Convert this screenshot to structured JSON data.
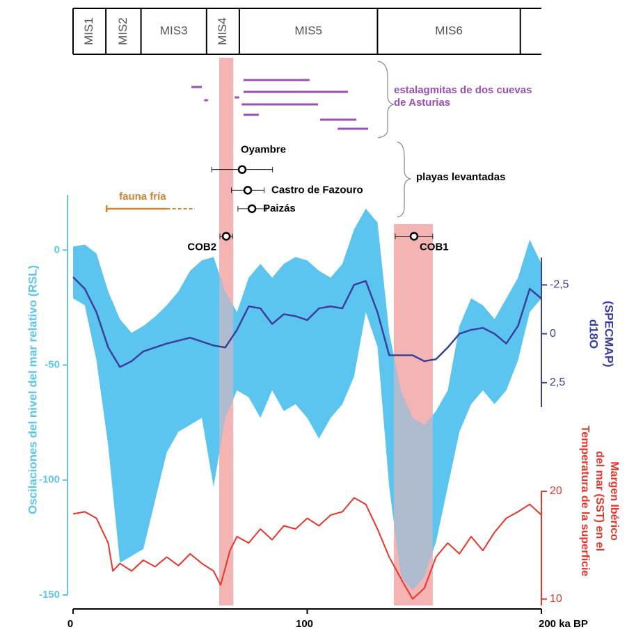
{
  "chart_data": {
    "type": "paleo",
    "x": [
      0,
      5,
      10,
      15,
      20,
      25,
      30,
      35,
      40,
      45,
      50,
      55,
      60,
      65,
      70,
      75,
      80,
      85,
      90,
      95,
      100,
      105,
      110,
      115,
      120,
      125,
      130,
      135,
      140,
      145,
      150,
      155,
      160,
      165,
      170,
      175,
      180,
      185,
      190,
      195,
      200
    ],
    "xlim": [
      0,
      200
    ],
    "xticks": [
      0,
      100,
      {
        "value": 200,
        "label": "200 ka BP"
      }
    ],
    "ylabel": "Oscilaciones del nivel del mar relativo (RSL)",
    "ylim": [
      -150,
      24
    ],
    "yticks": [
      0,
      -50,
      -100,
      -150
    ],
    "y2label": [
      "d18O",
      "(SPECMAP)"
    ],
    "y2lim": [
      -3.9,
      3.75
    ],
    "y2_inverted": true,
    "y2ticks": [
      {
        "value": -2.5,
        "label": "-2,5"
      },
      0,
      {
        "value": 2.5,
        "label": "2,5"
      }
    ],
    "y3label": [
      "Temperatura de la superficie",
      "del mar (SST) en el",
      "Margen Ibérico"
    ],
    "y3lim": [
      9.4,
      20
    ],
    "y3ticks": [
      10,
      20
    ],
    "rsl_band": {
      "color": "#5bc5ef",
      "upper": [
        1.5,
        2.4,
        -1.5,
        -18,
        -30,
        -36,
        -33,
        -29,
        -24,
        -18,
        -9,
        -4.5,
        -3,
        -18,
        -27,
        -12,
        -6,
        -12,
        -6,
        -3,
        -4.5,
        -9,
        -12,
        -6,
        9,
        18,
        12,
        -36,
        -61,
        -73,
        -76,
        -70,
        -61,
        -33,
        -21,
        -24,
        -30,
        -21,
        -12,
        4.5,
        -6
      ],
      "lower": [
        -21,
        -24,
        -48,
        -85,
        -136,
        -133,
        -130,
        -109,
        -88,
        -79,
        -76,
        -73,
        -103,
        -73,
        -61,
        -64,
        -73,
        -61,
        -70,
        -67,
        -73,
        -82,
        -73,
        -67,
        -55,
        -27,
        -42,
        -103,
        -142,
        -148,
        -142,
        -127,
        -103,
        -79,
        -67,
        -61,
        -67,
        -61,
        -48,
        -27,
        -21
      ]
    },
    "d18o": {
      "color": "#3a3f9e",
      "axis": "y2",
      "values": [
        -2.9,
        -2.3,
        -1.1,
        0.7,
        1.7,
        1.4,
        0.9,
        0.7,
        0.5,
        0.35,
        0.2,
        0.4,
        0.6,
        0.7,
        -0.2,
        -1.4,
        -1.3,
        -0.5,
        -1.0,
        -0.9,
        -0.7,
        -1.3,
        -1.4,
        -1.3,
        -2.5,
        -2.7,
        -1.1,
        1.1,
        1.1,
        1.1,
        1.4,
        1.3,
        0.7,
        0,
        -0.2,
        -0.3,
        0,
        0.5,
        -0.4,
        -2.3,
        -1.8
      ]
    },
    "sst": {
      "color": "#e8352a",
      "axis": "y3",
      "x": [
        0,
        5,
        10,
        15,
        17,
        20,
        25,
        30,
        35,
        40,
        45,
        50,
        55,
        60,
        63,
        67,
        70,
        75,
        80,
        85,
        90,
        95,
        100,
        105,
        110,
        115,
        120,
        125,
        130,
        135,
        140,
        145,
        150,
        155,
        160,
        165,
        170,
        175,
        180,
        185,
        190,
        195,
        200
      ],
      "values": [
        17.9,
        18.1,
        17.5,
        15.2,
        12.6,
        13.3,
        12.6,
        13.6,
        13,
        13.9,
        13.1,
        14.2,
        13.3,
        12.6,
        11.3,
        14.5,
        15.8,
        15.2,
        16.5,
        15.5,
        16.8,
        16.5,
        17.5,
        16.8,
        17.8,
        18.1,
        19.4,
        18.8,
        16.5,
        13.9,
        11.9,
        10,
        11,
        13.9,
        15.2,
        14.2,
        15.8,
        14.5,
        16.2,
        17.5,
        18.1,
        18.8,
        17.8
      ]
    },
    "mis": {
      "labels": [
        "MIS1",
        "MIS2",
        "MIS3",
        "MIS4",
        "MIS5",
        "MIS6"
      ],
      "bounds": [
        0,
        14,
        29,
        57,
        71,
        130,
        191
      ]
    },
    "bands": {
      "color": "#f4b4b4",
      "ranges": [
        [
          62.4,
          68.4
        ],
        [
          137,
          153.6
        ]
      ]
    },
    "stalagmites": {
      "label": [
        "estalagmitas de dos cuevas",
        "de Asturias"
      ],
      "color": "#9a4fb5",
      "ranges": [
        [
          72.8,
          101
        ],
        [
          50.5,
          55
        ],
        [
          72.8,
          117.4
        ],
        [
          69,
          71
        ],
        [
          56,
          57.6
        ],
        [
          72,
          104.6
        ],
        [
          72.8,
          79.3
        ],
        [
          105.5,
          121
        ],
        [
          113,
          126
        ]
      ]
    },
    "beaches": {
      "label": "playas levantadas",
      "points": [
        {
          "name": "Oyambre",
          "x": 72.2,
          "err": 13,
          "y": 35
        },
        {
          "name": "Castro de Fazouro",
          "x": 74.6,
          "err": 7,
          "y": 26
        },
        {
          "name": "Paizás",
          "x": 76.4,
          "err": 6,
          "y": 18
        },
        {
          "name": "COB2",
          "x": 65.4,
          "err": 2.7,
          "y": 6
        },
        {
          "name": "COB1",
          "x": 145.6,
          "err": 8,
          "y": 6
        }
      ]
    },
    "fauna": {
      "label": "fauna fría",
      "color": "#d9822b",
      "solid": [
        14.3,
        40
      ],
      "dashed": [
        40,
        52
      ]
    }
  }
}
